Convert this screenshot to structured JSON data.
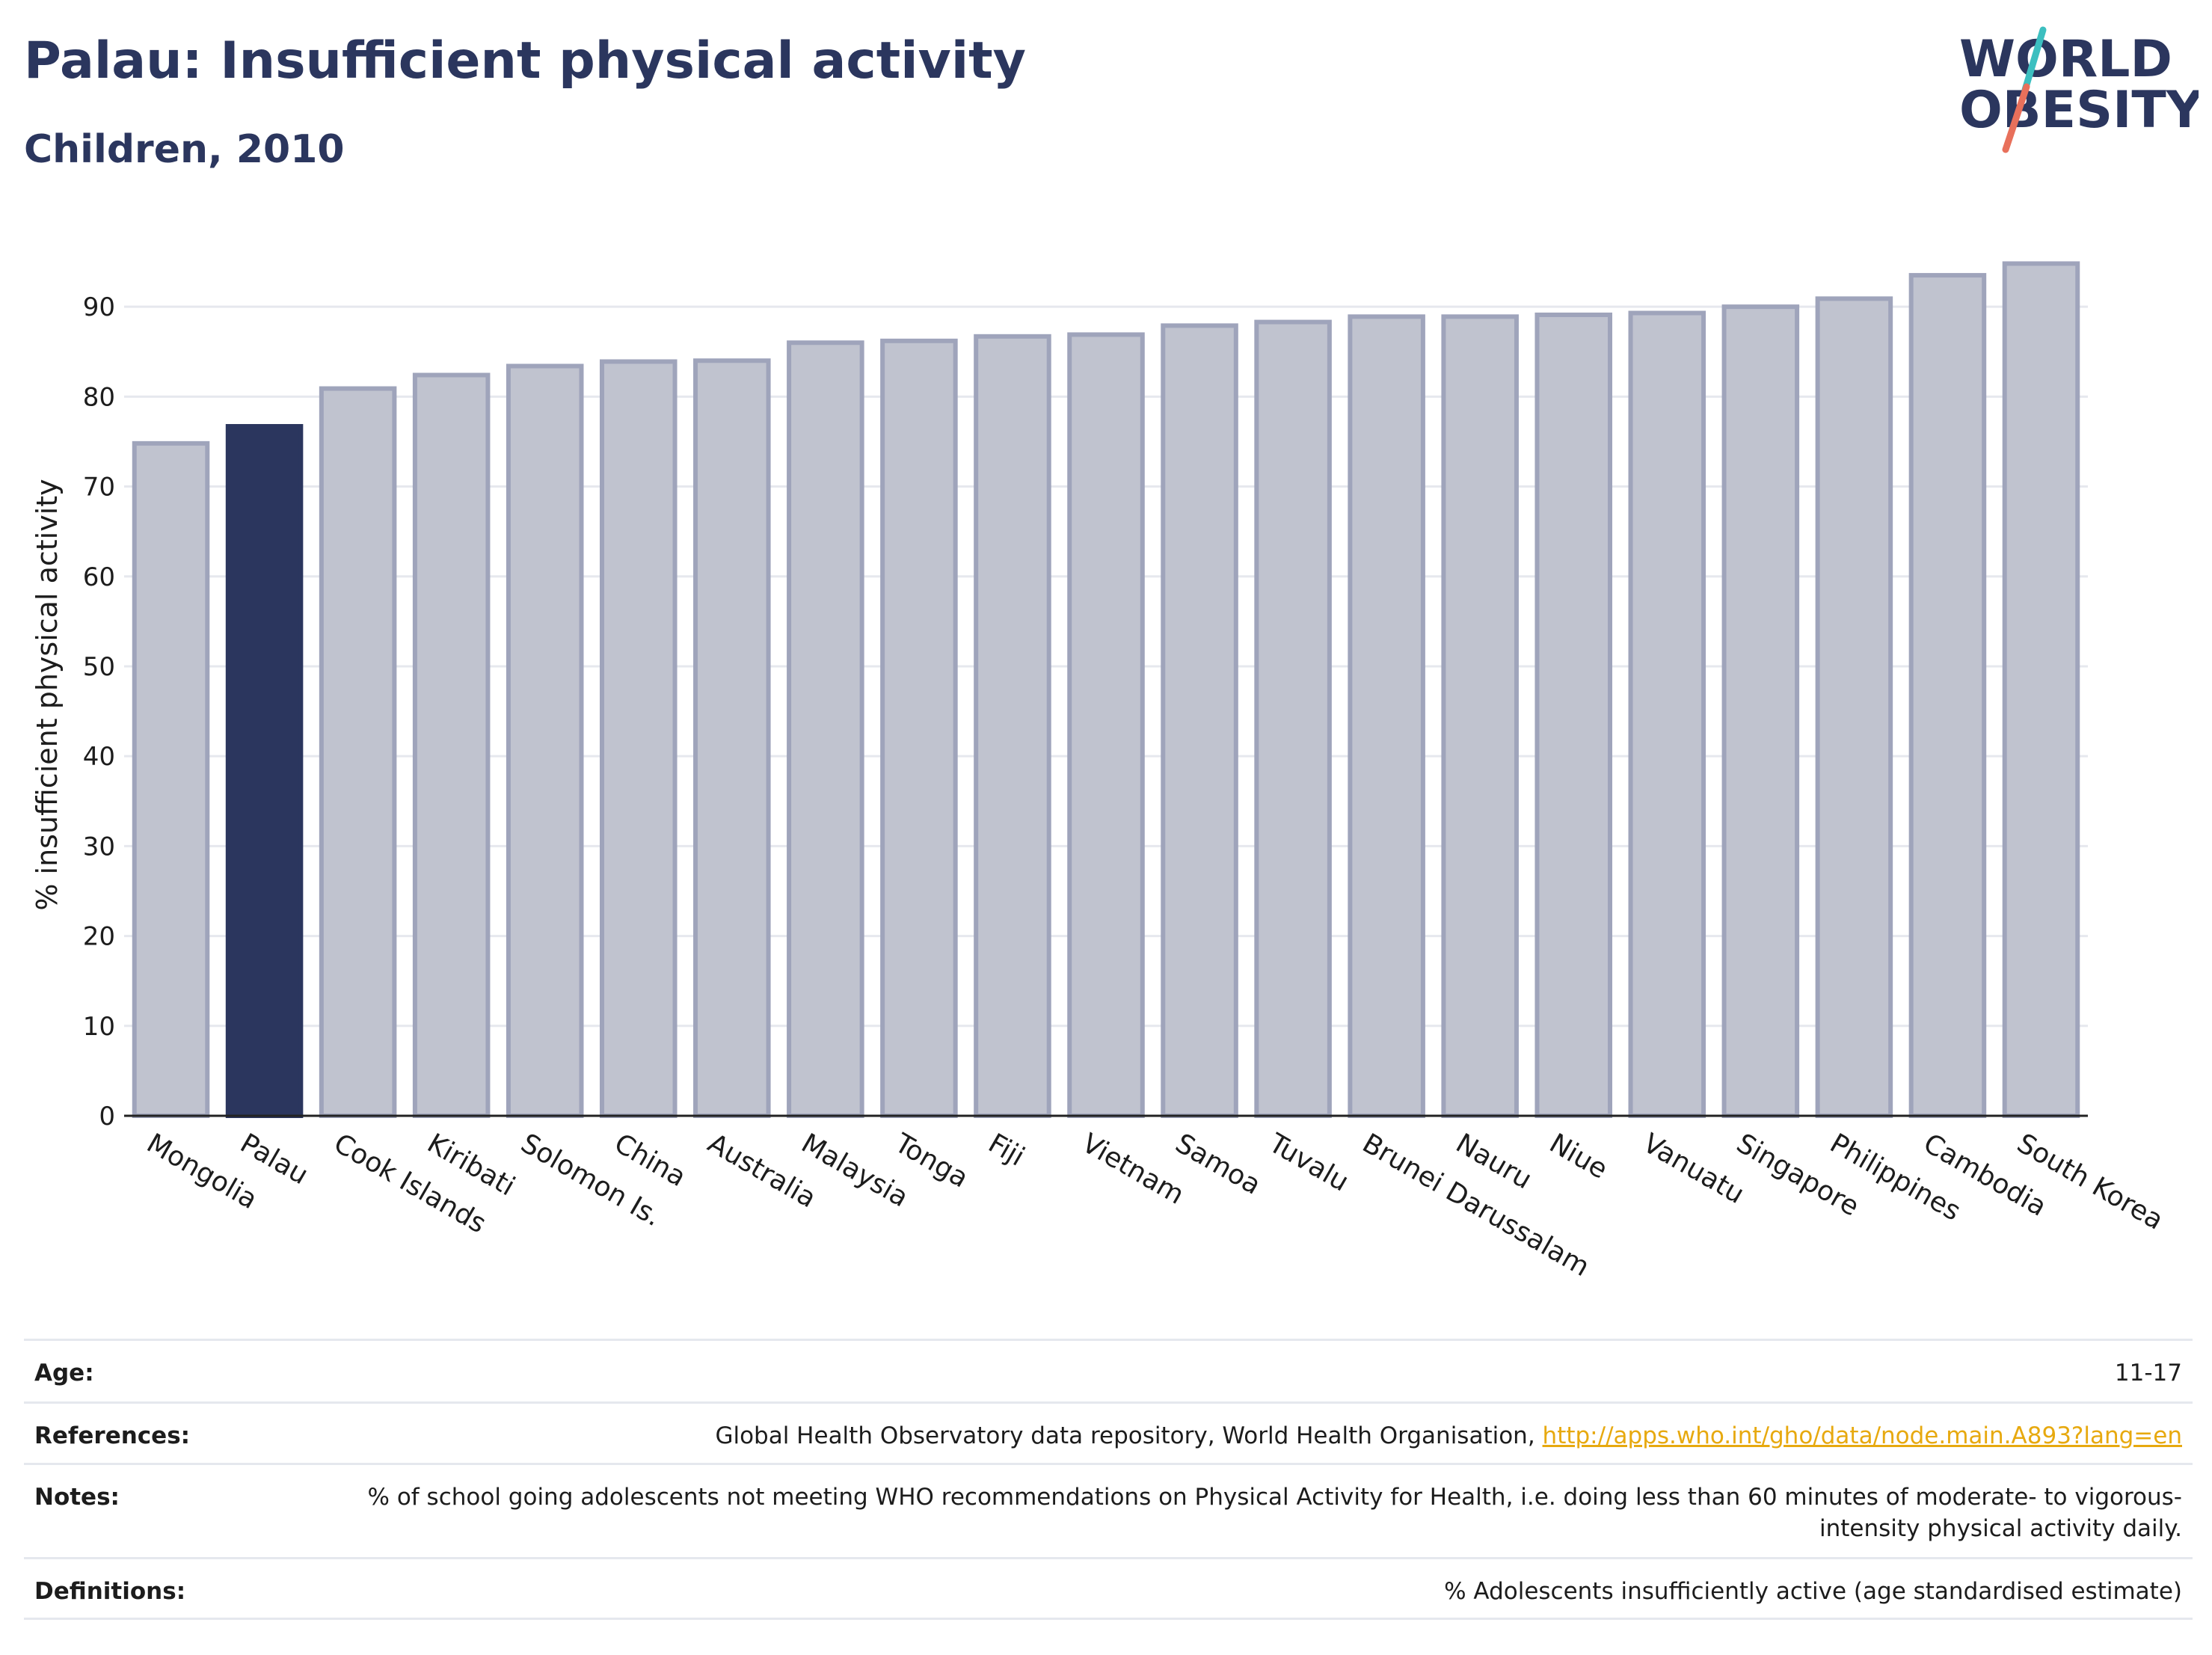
{
  "title": "Palau: Insufficient physical activity",
  "subtitle": "Children, 2010",
  "logo": {
    "line1": "WORLD",
    "line2": "OBESITY",
    "color": "#2b365e",
    "accent1": "#3cbfc0",
    "accent2": "#e8705b"
  },
  "chart_data": {
    "type": "bar",
    "ylabel": "% insufficient physical activity",
    "xlabel": "",
    "ylim": [
      0,
      97
    ],
    "yticks": [
      0,
      10,
      20,
      30,
      40,
      50,
      60,
      70,
      80,
      90
    ],
    "grid": true,
    "categories": [
      "Mongolia",
      "Palau",
      "Cook Islands",
      "Kiribati",
      "Solomon Is.",
      "China",
      "Australia",
      "Malaysia",
      "Tonga",
      "Fiji",
      "Vietnam",
      "Samoa",
      "Tuvalu",
      "Brunei Darussalam",
      "Nauru",
      "Niue",
      "Vanuatu",
      "Singapore",
      "Philippines",
      "Cambodia",
      "South Korea"
    ],
    "values": [
      74.8,
      76.7,
      80.9,
      82.4,
      83.4,
      83.9,
      84.0,
      86.0,
      86.2,
      86.7,
      86.9,
      87.9,
      88.3,
      88.9,
      88.9,
      89.1,
      89.3,
      90.0,
      90.9,
      93.5,
      94.8
    ],
    "highlight": "Palau",
    "colors": {
      "bar": "#c0c3cf",
      "bar_edge": "#9fa4bb",
      "highlight": "#2b365e"
    }
  },
  "info": {
    "age_label": "Age:",
    "age_value": "11-17",
    "references_label": "References:",
    "references_text": "Global Health Observatory data repository, World Health Organisation, ",
    "references_link": "http://apps.who.int/gho/data/node.main.A893?lang=en",
    "notes_label": "Notes:",
    "notes_value": "% of school going adolescents not meeting WHO recommendations on Physical Activity for Health, i.e. doing less than 60 minutes of moderate- to vigorous-intensity physical activity daily.",
    "definitions_label": "Definitions:",
    "definitions_value": "% Adolescents insufficiently active (age standardised estimate)"
  }
}
